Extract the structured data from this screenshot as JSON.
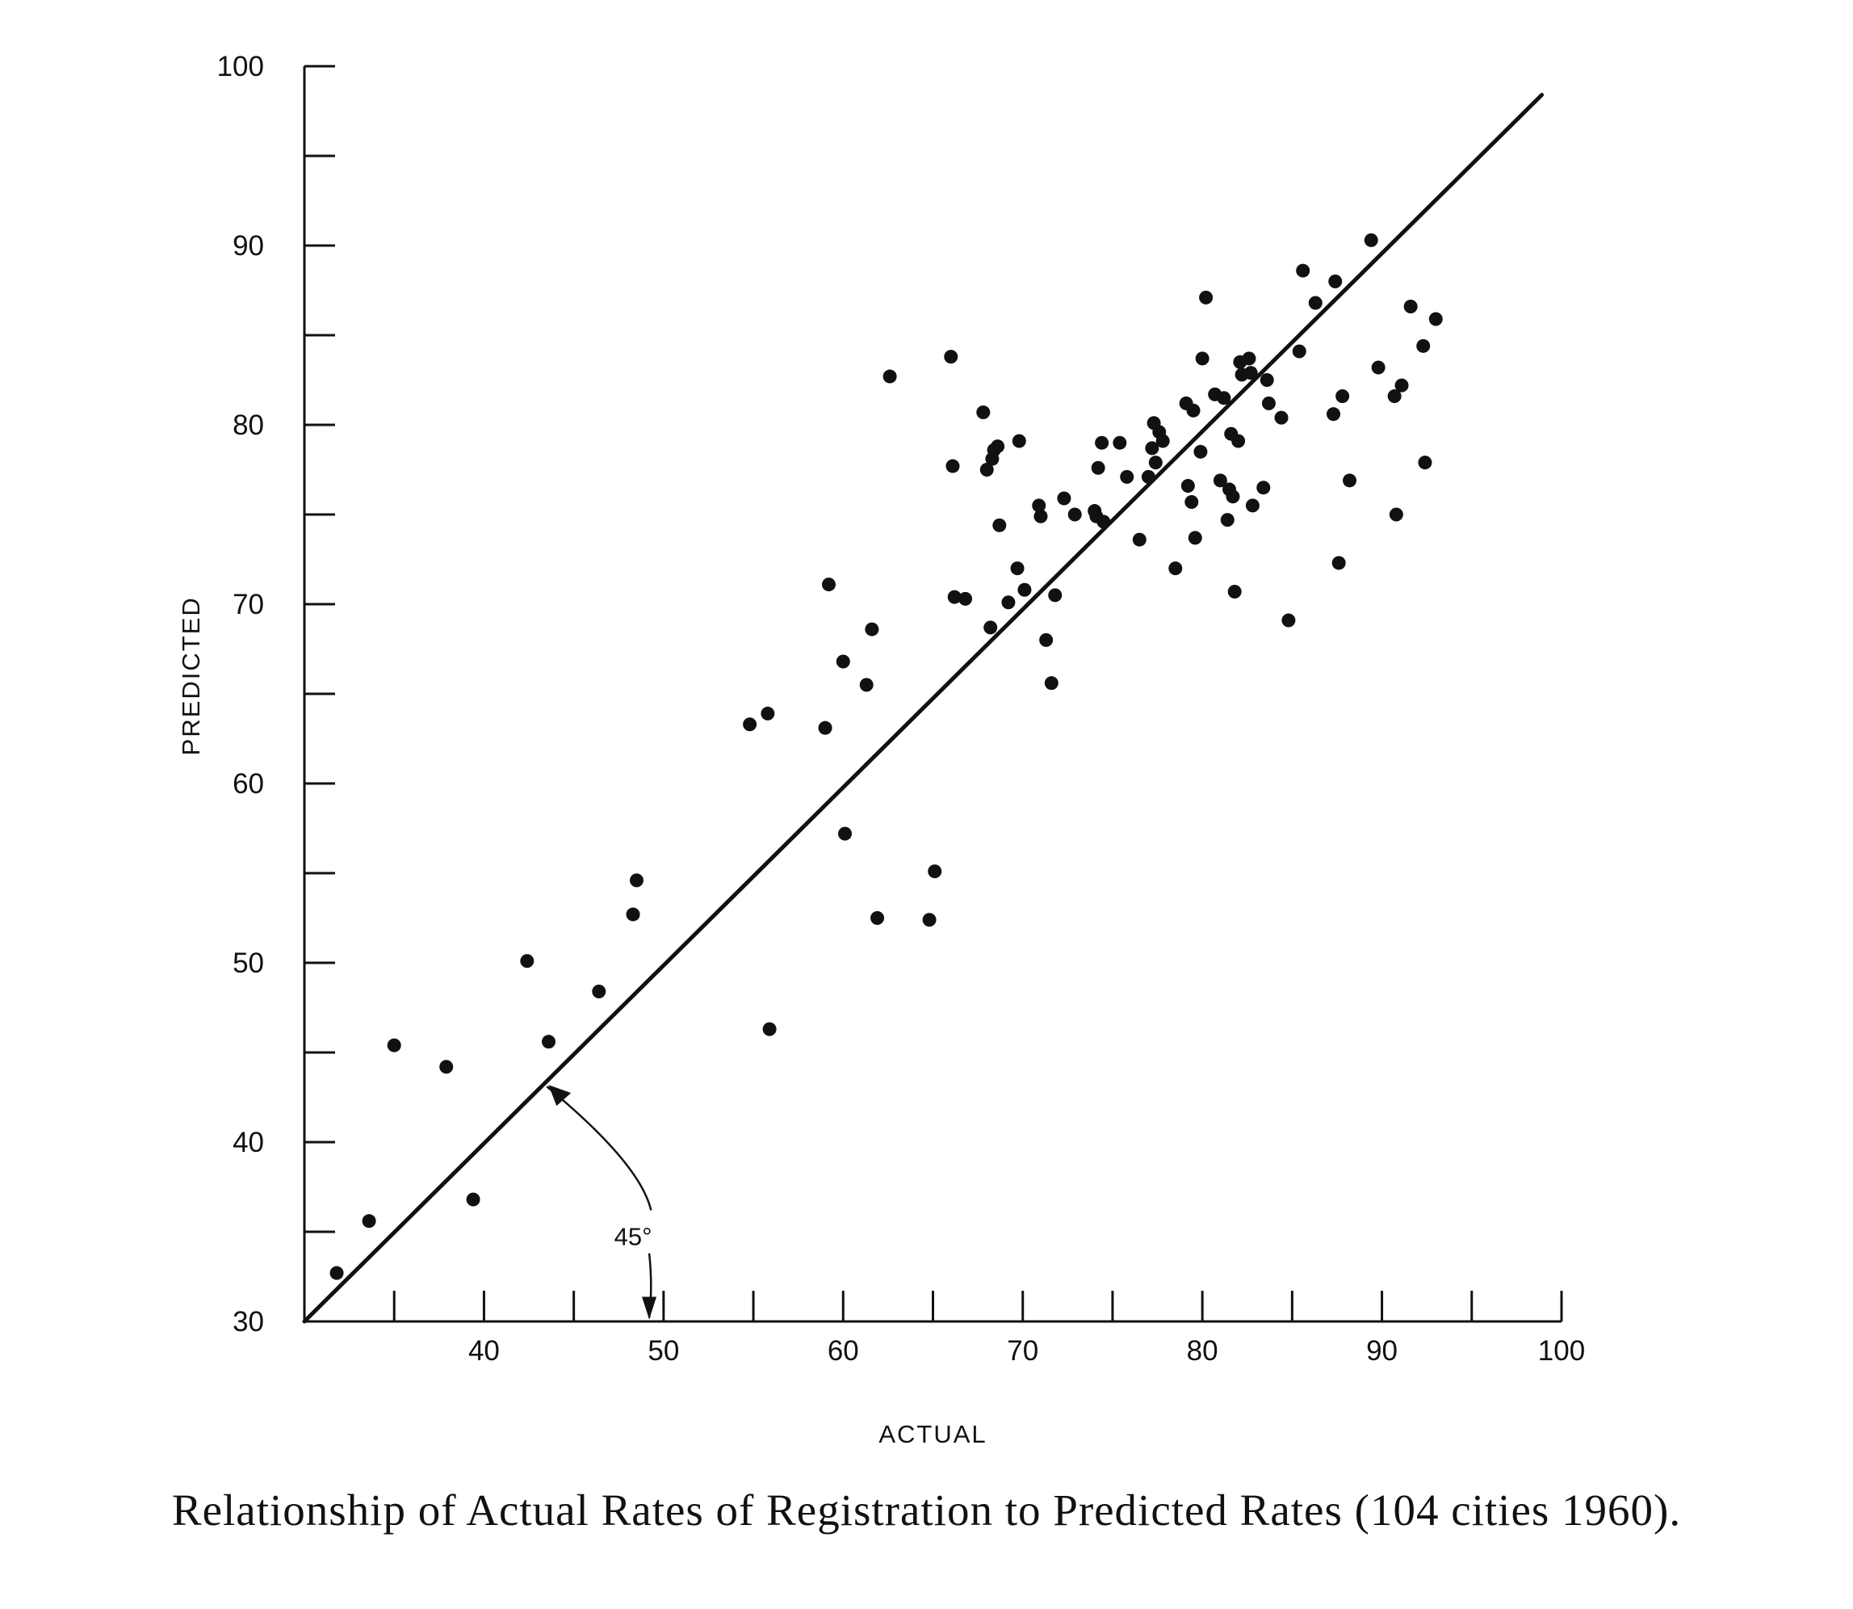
{
  "caption": "Relationship of Actual Rates of Registration to Predicted Rates (104 cities 1960).",
  "chart_data": {
    "type": "scatter",
    "xlabel": "ACTUAL",
    "ylabel": "PREDICTED",
    "xlim": [
      30,
      100
    ],
    "ylim": [
      30,
      100
    ],
    "x_ticks": [
      "40",
      "50",
      "60",
      "70",
      "80",
      "90",
      "100"
    ],
    "y_ticks": [
      "30",
      "40",
      "50",
      "60",
      "70",
      "80",
      "90",
      "100"
    ],
    "grid": false,
    "reference_line": {
      "from": [
        30,
        30
      ],
      "to": [
        98.9,
        98.4
      ]
    },
    "annotation": {
      "text": "45°"
    },
    "points": [
      [
        31.8,
        32.7
      ],
      [
        33.6,
        35.6
      ],
      [
        35.0,
        45.4
      ],
      [
        37.9,
        44.2
      ],
      [
        39.4,
        36.8
      ],
      [
        42.4,
        50.1
      ],
      [
        43.6,
        45.6
      ],
      [
        46.4,
        48.4
      ],
      [
        48.3,
        52.7
      ],
      [
        48.5,
        54.6
      ],
      [
        54.8,
        63.3
      ],
      [
        55.8,
        63.9
      ],
      [
        55.9,
        46.3
      ],
      [
        59.0,
        63.1
      ],
      [
        59.2,
        71.1
      ],
      [
        60.0,
        66.8
      ],
      [
        60.1,
        57.2
      ],
      [
        61.3,
        65.5
      ],
      [
        61.6,
        68.6
      ],
      [
        61.9,
        52.5
      ],
      [
        62.6,
        82.7
      ],
      [
        64.8,
        52.4
      ],
      [
        65.1,
        55.1
      ],
      [
        66.0,
        83.8
      ],
      [
        66.1,
        77.7
      ],
      [
        66.2,
        70.4
      ],
      [
        66.8,
        70.3
      ],
      [
        67.8,
        80.7
      ],
      [
        68.0,
        77.5
      ],
      [
        68.2,
        68.7
      ],
      [
        68.3,
        78.1
      ],
      [
        68.4,
        78.6
      ],
      [
        68.6,
        78.8
      ],
      [
        68.7,
        74.4
      ],
      [
        69.2,
        70.1
      ],
      [
        69.8,
        79.1
      ],
      [
        69.7,
        72.0
      ],
      [
        70.1,
        70.8
      ],
      [
        70.9,
        75.5
      ],
      [
        71.0,
        74.9
      ],
      [
        71.3,
        68.0
      ],
      [
        71.6,
        65.6
      ],
      [
        71.8,
        70.5
      ],
      [
        72.3,
        75.9
      ],
      [
        72.9,
        75.0
      ],
      [
        74.0,
        75.2
      ],
      [
        74.1,
        74.9
      ],
      [
        74.2,
        77.6
      ],
      [
        74.4,
        79.0
      ],
      [
        74.5,
        74.6
      ],
      [
        75.4,
        79.0
      ],
      [
        75.8,
        77.1
      ],
      [
        76.5,
        73.6
      ],
      [
        77.0,
        77.1
      ],
      [
        77.2,
        78.7
      ],
      [
        77.3,
        80.1
      ],
      [
        77.4,
        77.9
      ],
      [
        77.6,
        79.6
      ],
      [
        77.8,
        79.1
      ],
      [
        78.5,
        72.0
      ],
      [
        79.1,
        81.2
      ],
      [
        79.2,
        76.6
      ],
      [
        79.4,
        75.7
      ],
      [
        79.5,
        80.8
      ],
      [
        79.6,
        73.7
      ],
      [
        79.9,
        78.5
      ],
      [
        80.0,
        83.7
      ],
      [
        80.2,
        87.1
      ],
      [
        80.7,
        81.7
      ],
      [
        81.0,
        76.9
      ],
      [
        81.2,
        81.5
      ],
      [
        81.4,
        74.7
      ],
      [
        81.5,
        76.4
      ],
      [
        81.6,
        79.5
      ],
      [
        81.7,
        76.0
      ],
      [
        81.8,
        70.7
      ],
      [
        82.0,
        79.1
      ],
      [
        82.1,
        83.5
      ],
      [
        82.2,
        82.8
      ],
      [
        82.6,
        83.7
      ],
      [
        82.7,
        82.9
      ],
      [
        82.8,
        75.5
      ],
      [
        83.4,
        76.5
      ],
      [
        83.6,
        82.5
      ],
      [
        83.7,
        81.2
      ],
      [
        84.4,
        80.4
      ],
      [
        84.8,
        69.1
      ],
      [
        85.4,
        84.1
      ],
      [
        85.6,
        88.6
      ],
      [
        86.3,
        86.8
      ],
      [
        87.3,
        80.6
      ],
      [
        87.4,
        88.0
      ],
      [
        87.6,
        72.3
      ],
      [
        87.8,
        81.6
      ],
      [
        88.2,
        76.9
      ],
      [
        89.4,
        90.3
      ],
      [
        89.8,
        83.2
      ],
      [
        90.7,
        81.6
      ],
      [
        90.8,
        75.0
      ],
      [
        91.1,
        82.2
      ],
      [
        91.6,
        86.6
      ],
      [
        92.3,
        84.4
      ],
      [
        92.4,
        77.9
      ],
      [
        93.0,
        85.9
      ]
    ]
  }
}
